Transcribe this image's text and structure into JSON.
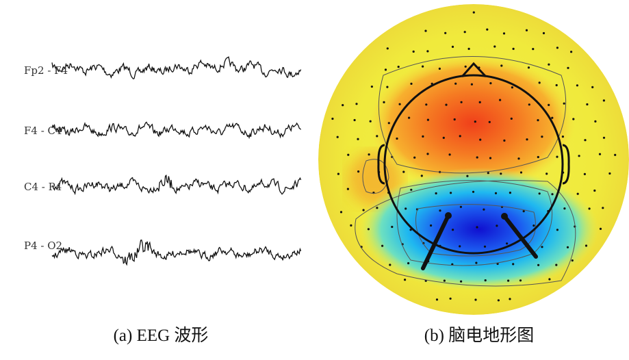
{
  "panel_a": {
    "channels": [
      "Fp2 - F4",
      "F4 - C4",
      "C4 - P4",
      "P4 - O2"
    ],
    "caption": "(a) EEG 波形"
  },
  "panel_b": {
    "caption": "(b) 脑电地形图"
  }
}
